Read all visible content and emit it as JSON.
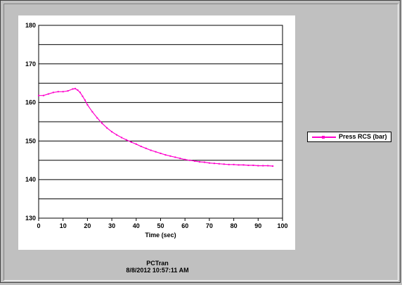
{
  "footer": {
    "app_name": "PCTran",
    "timestamp": "8/8/2012 10:57:11 AM"
  },
  "colors": {
    "series": "#ff00cc",
    "grid": "#000000",
    "plot_background": "#ffffff",
    "window_background": "#c0c0c0"
  },
  "chart_data": {
    "type": "line",
    "title": "",
    "xlabel": "Time (sec)",
    "ylabel": "",
    "xlim": [
      0,
      100
    ],
    "ylim": [
      130,
      180
    ],
    "xticks": [
      0,
      10,
      20,
      30,
      40,
      50,
      60,
      70,
      80,
      90,
      100
    ],
    "yticks": [
      130,
      140,
      150,
      160,
      170,
      180
    ],
    "grid": "horizontal",
    "legend_position": "right",
    "series": [
      {
        "name": "Press RCS (bar)",
        "color": "#ff00cc",
        "x": [
          0,
          2,
          4,
          6,
          8,
          10,
          12,
          14,
          15,
          16,
          17,
          18,
          19,
          20,
          22,
          24,
          26,
          28,
          30,
          32,
          34,
          36,
          38,
          40,
          42,
          44,
          46,
          48,
          50,
          52,
          54,
          56,
          58,
          60,
          62,
          64,
          66,
          68,
          70,
          72,
          74,
          76,
          78,
          80,
          82,
          84,
          86,
          88,
          90,
          92,
          94,
          96
        ],
        "y": [
          161.8,
          161.8,
          162.2,
          162.6,
          162.8,
          162.8,
          163.0,
          163.5,
          163.6,
          163.2,
          162.6,
          161.6,
          160.6,
          159.4,
          157.6,
          156.0,
          154.6,
          153.4,
          152.4,
          151.6,
          150.9,
          150.3,
          149.7,
          149.2,
          148.6,
          148.1,
          147.6,
          147.2,
          146.8,
          146.4,
          146.1,
          145.8,
          145.5,
          145.2,
          145.0,
          144.8,
          144.6,
          144.5,
          144.3,
          144.2,
          144.1,
          144.0,
          143.9,
          143.9,
          143.8,
          143.8,
          143.7,
          143.7,
          143.6,
          143.6,
          143.6,
          143.5
        ]
      }
    ]
  }
}
